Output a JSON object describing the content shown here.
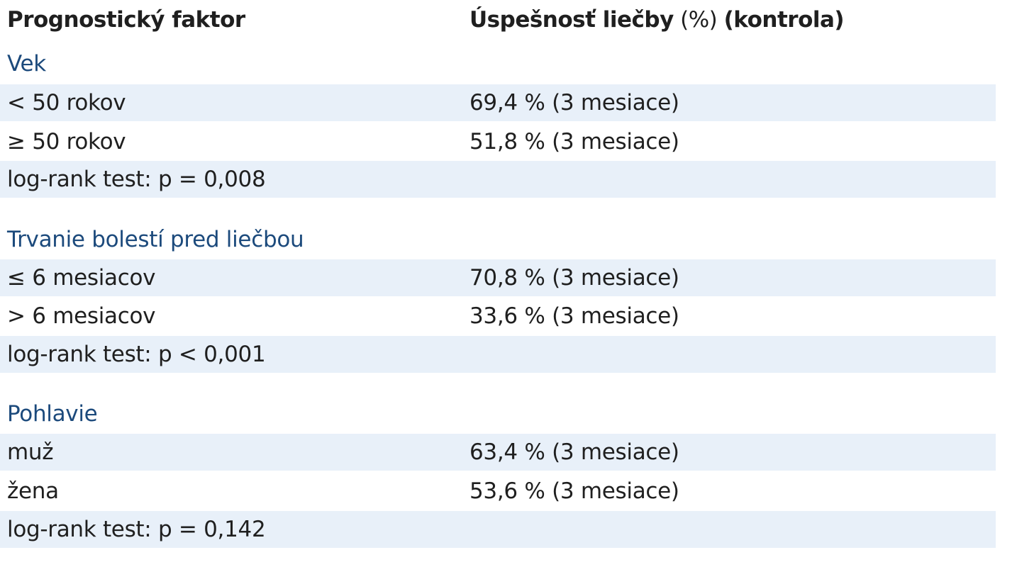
{
  "header": {
    "col1": "Prognostický faktor",
    "col2_bold_a": "Úspešnosť liečby",
    "col2_light": " (%) ",
    "col2_bold_b": "(kontrola)"
  },
  "sections": [
    {
      "title": "Vek",
      "rows": [
        {
          "factor": "< 50 rokov",
          "value": "69,4 % (3 mesiace)"
        },
        {
          "factor": "≥ 50 rokov",
          "value": "51,8 % (3 mesiace)"
        }
      ],
      "test": "log-rank test: p = 0,008"
    },
    {
      "title": "Trvanie bolestí pred liečbou",
      "rows": [
        {
          "factor": "≤ 6 mesiacov",
          "value": "70,8 % (3 mesiace)"
        },
        {
          "factor": "> 6 mesiacov",
          "value": "33,6 % (3 mesiace)"
        }
      ],
      "test": "log-rank test: p < 0,001"
    },
    {
      "title": "Pohlavie",
      "rows": [
        {
          "factor": "muž",
          "value": "63,4 % (3 mesiace)"
        },
        {
          "factor": "žena",
          "value": "53,6 % (3 mesiace)"
        }
      ],
      "test": "log-rank test: p = 0,142"
    }
  ]
}
